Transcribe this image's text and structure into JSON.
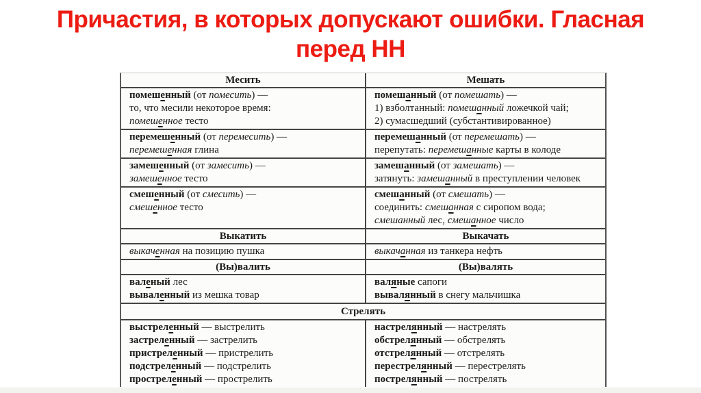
{
  "title": {
    "line1": "Причастия, в которых допускают ошибки. Гласная",
    "line2": "перед НН"
  },
  "colors": {
    "title_red": "#ec1c13",
    "table_border": "#454545",
    "table_bg": "#fcfcfa",
    "text": "#1b1b1b"
  },
  "table": {
    "markup_legend": "** bold ** , // italic // , { underlined letter }",
    "sections": [
      {
        "type": "headers",
        "left": "Месить",
        "right": "Мешать"
      },
      {
        "type": "row",
        "left": [
          "**помеш{е}нный** (от //помесить//) —",
          "то, что месили некоторое время:",
          "//помеш{е}нное// тесто"
        ],
        "right": [
          "**помеш{а}нный** (от //помешать//) —",
          "1) взболтанный: //помеш{а}нный// ложечкой чай;",
          "2) сумасшедший (субстантивированное)"
        ]
      },
      {
        "type": "row",
        "left": [
          "**перемеш{е}нный** (от //перемесить//) —",
          "//перемеш{е}нная// глина"
        ],
        "right": [
          "**перемеш{а}нный** (от //перемешать//) —",
          "перепутать: //перемеш{а}нные// карты в колоде"
        ]
      },
      {
        "type": "row",
        "left": [
          "**замеш{е}нный** (от //замесить//) —",
          "//замеш{е}нное// тесто"
        ],
        "right": [
          "**замеш{а}нный** (от //замешать//) —",
          "затянуть: //замеш{а}нный// в преступлении человек"
        ]
      },
      {
        "type": "row",
        "left": [
          "**смеш{е}нный** (от //смесить//) —",
          "//смеш{е}нное// тесто"
        ],
        "right": [
          "**смеш{а}нный** (от //смешать//) —",
          "соединить: //смеш{а}нная// с сиропом вода;",
          "//смешанный// лес, //смеш{а}нное// число"
        ]
      },
      {
        "type": "headers",
        "left": "Выкатить",
        "right": "Выкачать"
      },
      {
        "type": "row",
        "left": [
          "//выкач{е}нная// на позицию пушка"
        ],
        "right": [
          "//выкач{а}нная// из танкера нефть"
        ]
      },
      {
        "type": "headers",
        "left": "(Вы)валить",
        "right": "(Вы)валять"
      },
      {
        "type": "row",
        "left": [
          "**вал{е}ный** лес",
          "**вывал{е}нный** из мешка товар"
        ],
        "right": [
          "**вал{я}ные** сапоги",
          "**вывал{я}нный** в снегу мальчишка"
        ]
      },
      {
        "type": "header-full",
        "label": "Стрелять"
      },
      {
        "type": "row",
        "left": [
          "**выстрел{е}нный** — выстрелить",
          "**застрел{е}нный** — застрелить",
          "**пристрел{е}нный** — пристрелить",
          "**подстрел{е}нный** — подстрелить",
          "**прострел{е}нный** — прострелить"
        ],
        "right": [
          "**настрел{я}нный** — настрелять",
          "**обстрел{я}нный** — обстрелять",
          "**отстрел{я}нный** — отстрелять",
          "**перестрел{я}нный** — перестрелять",
          "**пострел{я}нный** — пострелять"
        ]
      }
    ]
  }
}
